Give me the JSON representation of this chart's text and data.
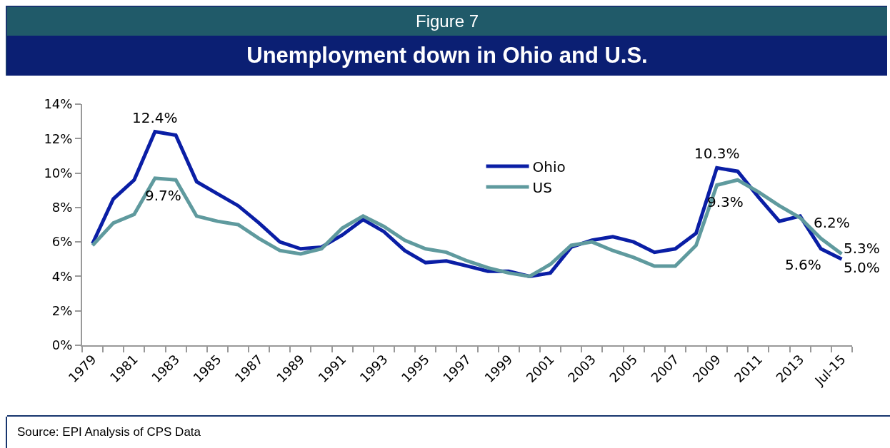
{
  "chart_data": {
    "type": "line",
    "title": "Unemployment down in Ohio and U.S.",
    "annotations": [
      "Figure 7",
      "Source: EPI Analysis of CPS Data"
    ],
    "categories": [
      "1979",
      null,
      "1981",
      null,
      "1983",
      null,
      "1985",
      null,
      "1987",
      null,
      "1989",
      null,
      "1991",
      null,
      "1993",
      null,
      "1995",
      null,
      "1997",
      null,
      "1999",
      null,
      "2001",
      null,
      "2003",
      null,
      "2005",
      null,
      "2007",
      null,
      "2009",
      null,
      "2011",
      null,
      "2013",
      null,
      "Jul-15"
    ],
    "series": [
      {
        "name": "Ohio",
        "color": "#0a1ea5",
        "values": [
          5.9,
          8.5,
          9.6,
          12.4,
          12.2,
          9.5,
          8.8,
          8.1,
          7.1,
          6.0,
          5.6,
          5.7,
          6.4,
          7.3,
          6.6,
          5.5,
          4.8,
          4.9,
          4.6,
          4.3,
          4.3,
          4.0,
          4.2,
          5.7,
          6.1,
          6.3,
          6.0,
          5.4,
          5.6,
          6.5,
          10.3,
          10.1,
          8.6,
          7.2,
          7.5,
          5.6,
          5.0
        ],
        "value_labels": [
          null,
          null,
          null,
          "12.4%",
          null,
          null,
          null,
          null,
          null,
          null,
          null,
          null,
          null,
          null,
          null,
          null,
          null,
          null,
          null,
          null,
          null,
          null,
          null,
          null,
          null,
          null,
          null,
          null,
          null,
          null,
          "10.3%",
          null,
          null,
          null,
          null,
          "5.6%",
          "5.0%"
        ]
      },
      {
        "name": "US",
        "color": "#5f9a9e",
        "values": [
          5.8,
          7.1,
          7.6,
          9.7,
          9.6,
          7.5,
          7.2,
          7.0,
          6.2,
          5.5,
          5.3,
          5.6,
          6.8,
          7.5,
          6.9,
          6.1,
          5.6,
          5.4,
          4.9,
          4.5,
          4.2,
          4.0,
          4.7,
          5.8,
          6.0,
          5.5,
          5.1,
          4.6,
          4.6,
          5.8,
          9.3,
          9.6,
          8.9,
          8.1,
          7.4,
          6.2,
          5.3
        ],
        "value_labels": [
          null,
          null,
          null,
          "9.7%",
          null,
          null,
          null,
          null,
          null,
          null,
          null,
          null,
          null,
          null,
          null,
          null,
          null,
          null,
          null,
          null,
          null,
          null,
          null,
          null,
          null,
          null,
          null,
          null,
          null,
          null,
          "9.3%",
          null,
          null,
          null,
          null,
          "6.2%",
          "5.3%"
        ]
      }
    ],
    "ylim": [
      0,
      14
    ],
    "yticks": [
      {
        "value": 0,
        "label": "0%"
      },
      {
        "value": 2,
        "label": "2%"
      },
      {
        "value": 4,
        "label": "4%"
      },
      {
        "value": 6,
        "label": "6%"
      },
      {
        "value": 8,
        "label": "8%"
      },
      {
        "value": 10,
        "label": "10%"
      },
      {
        "value": 12,
        "label": "12%"
      },
      {
        "value": 14,
        "label": "14%"
      }
    ],
    "grid": false,
    "legend": "top",
    "marker": "none",
    "line_style": "solid"
  }
}
